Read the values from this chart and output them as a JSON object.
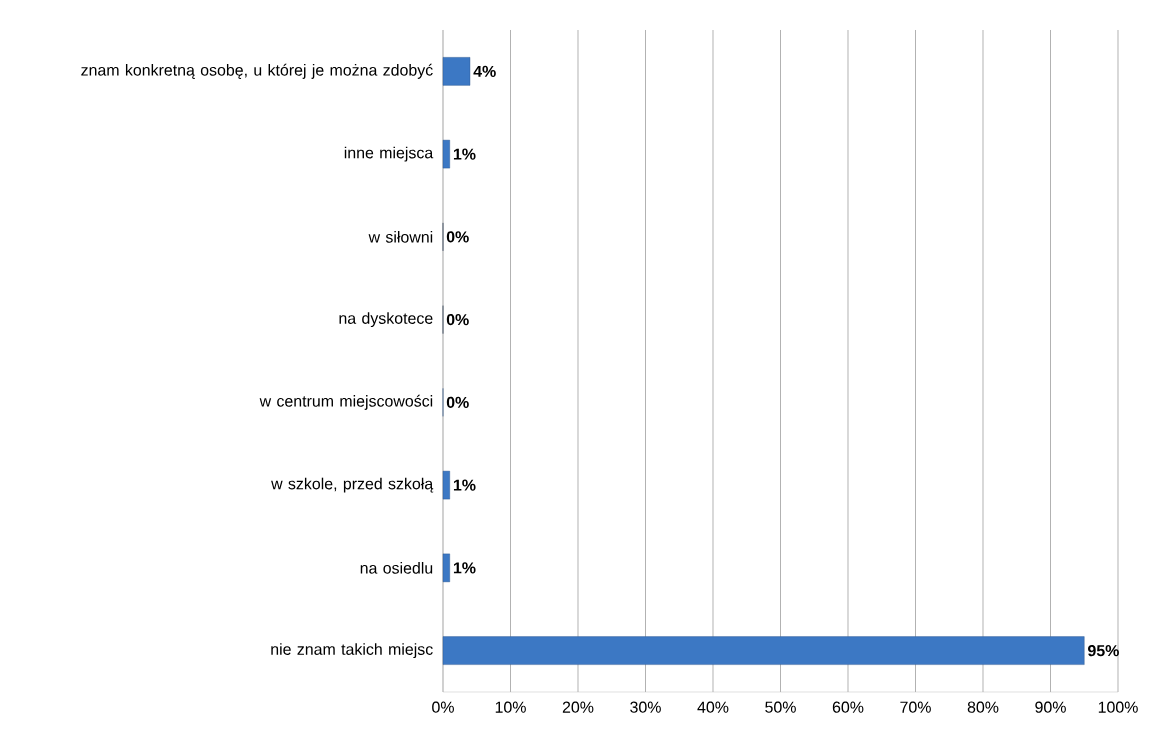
{
  "chart_data": {
    "type": "bar",
    "orientation": "horizontal",
    "categories": [
      "znam konkretną osobę, u której je można zdobyć",
      "inne miejsca",
      "w siłowni",
      "na dyskotece",
      "w centrum miejscowości",
      "w szkole, przed szkołą",
      "na osiedlu",
      "nie znam takich miejsc"
    ],
    "values": [
      4,
      1,
      0,
      0,
      0,
      1,
      1,
      95
    ],
    "value_labels": [
      "4%",
      "1%",
      "0%",
      "0%",
      "0%",
      "1%",
      "1%",
      "95%"
    ],
    "colors": [
      "#3c78c4",
      "#3c78c4",
      "#1f3a60",
      "#1f3a60",
      "#3c78c4",
      "#3c78c4",
      "#3c78c4",
      "#3c78c4"
    ],
    "xlim": [
      0,
      100
    ],
    "xticks": [
      {
        "value": 0,
        "label": "0%"
      },
      {
        "value": 10,
        "label": "10%"
      },
      {
        "value": 20,
        "label": "20%"
      },
      {
        "value": 30,
        "label": "30%"
      },
      {
        "value": 40,
        "label": "40%"
      },
      {
        "value": 50,
        "label": "50%"
      },
      {
        "value": 60,
        "label": "60%"
      },
      {
        "value": 70,
        "label": "70%"
      },
      {
        "value": 80,
        "label": "80%"
      },
      {
        "value": 90,
        "label": "90%"
      },
      {
        "value": 100,
        "label": "100%"
      }
    ],
    "grid": "x"
  }
}
